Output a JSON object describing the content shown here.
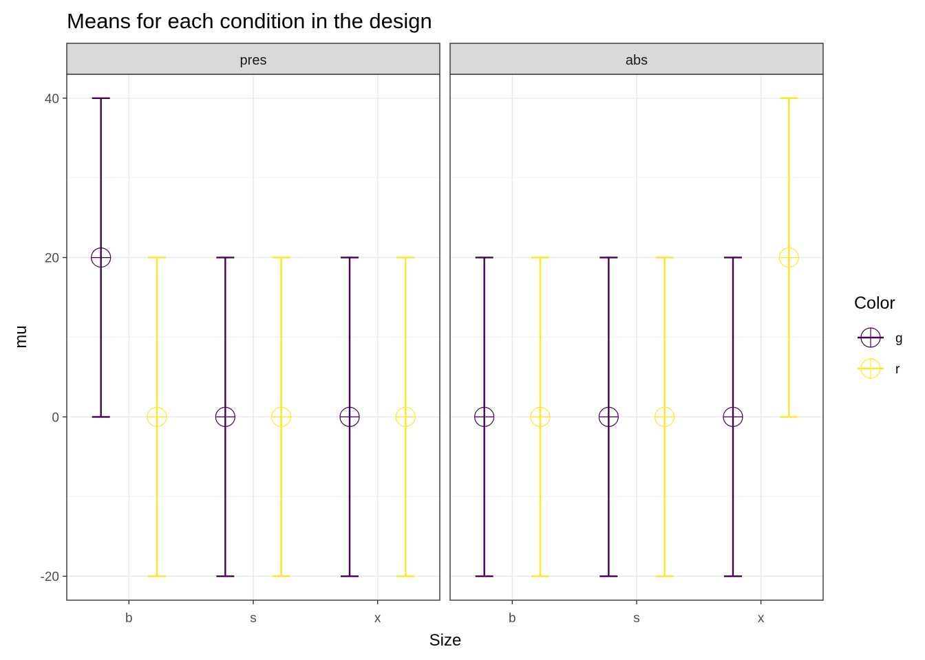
{
  "chart_data": {
    "type": "errorbar",
    "title": "Means for each condition in the design",
    "xlabel": "Size",
    "ylabel": "mu",
    "ylim": [
      -23,
      43
    ],
    "yticks": [
      -20,
      0,
      20,
      40
    ],
    "categories": [
      "b",
      "s",
      "x"
    ],
    "grid": true,
    "legend": {
      "title": "Color",
      "placement": "right",
      "entries": [
        {
          "label": "g",
          "color": "#440154"
        },
        {
          "label": "r",
          "color": "#FDE725"
        }
      ]
    },
    "panels": [
      {
        "name": "pres",
        "series": [
          {
            "color_group": "g",
            "color": "#440154",
            "points": [
              {
                "x": "b",
                "mean": 20,
                "lower": 0,
                "upper": 40
              },
              {
                "x": "s",
                "mean": 0,
                "lower": -20,
                "upper": 20
              },
              {
                "x": "x",
                "mean": 0,
                "lower": -20,
                "upper": 20
              }
            ]
          },
          {
            "color_group": "r",
            "color": "#FDE725",
            "points": [
              {
                "x": "b",
                "mean": 0,
                "lower": -20,
                "upper": 20
              },
              {
                "x": "s",
                "mean": 0,
                "lower": -20,
                "upper": 20
              },
              {
                "x": "x",
                "mean": 0,
                "lower": -20,
                "upper": 20
              }
            ]
          }
        ]
      },
      {
        "name": "abs",
        "series": [
          {
            "color_group": "g",
            "color": "#440154",
            "points": [
              {
                "x": "b",
                "mean": 0,
                "lower": -20,
                "upper": 20
              },
              {
                "x": "s",
                "mean": 0,
                "lower": -20,
                "upper": 20
              },
              {
                "x": "x",
                "mean": 0,
                "lower": -20,
                "upper": 20
              }
            ]
          },
          {
            "color_group": "r",
            "color": "#FDE725",
            "points": [
              {
                "x": "b",
                "mean": 0,
                "lower": -20,
                "upper": 20
              },
              {
                "x": "s",
                "mean": 0,
                "lower": -20,
                "upper": 20
              },
              {
                "x": "x",
                "mean": 20,
                "lower": 0,
                "upper": 40
              }
            ]
          }
        ]
      }
    ]
  }
}
